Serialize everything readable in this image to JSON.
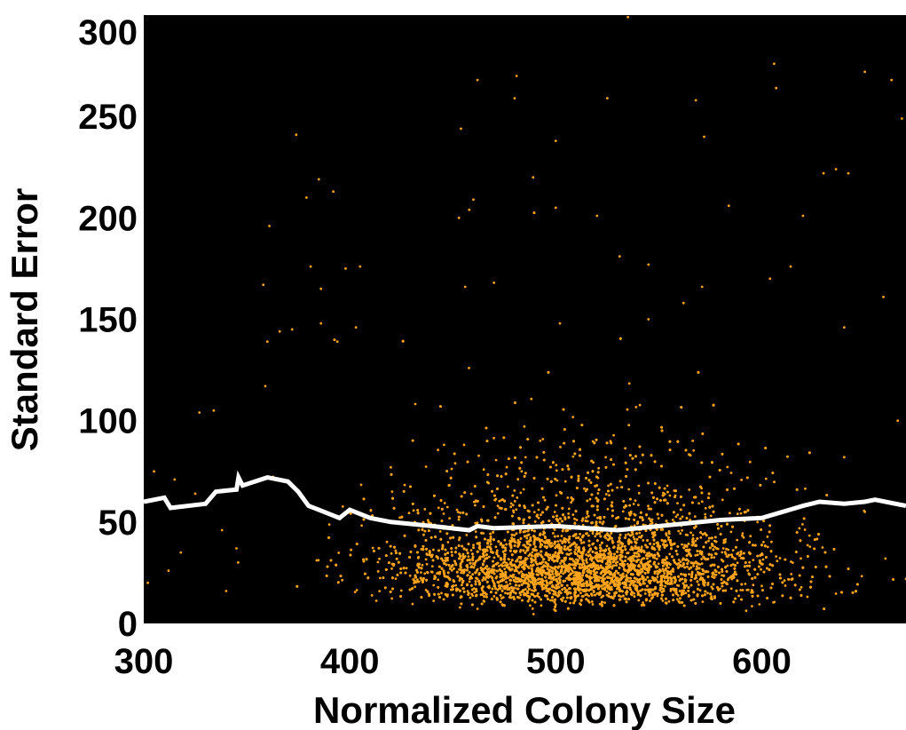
{
  "colors": {
    "plot_background": "#000000",
    "points": "#ffa31a",
    "trend_line": "#ffffff",
    "page_background": "#ffffff"
  },
  "chart_data": {
    "type": "scatter",
    "title": "",
    "xlabel": "Normalized Colony Size",
    "ylabel": "Standard Error",
    "xlim": [
      300,
      670
    ],
    "ylim": [
      0,
      300
    ],
    "xticks": [
      300,
      400,
      500,
      600
    ],
    "yticks": [
      0,
      50,
      100,
      150,
      200,
      250,
      300
    ],
    "grid": false,
    "legend": "none",
    "scatter_summary": {
      "approx_point_count": 10000,
      "x_center": 515,
      "x_spread": 45,
      "y_mode": 28,
      "y_max_visible": 300
    },
    "sparse_points": [
      [
        535,
        299
      ],
      [
        462,
        268
      ],
      [
        481,
        270
      ],
      [
        650,
        272
      ],
      [
        663,
        268
      ],
      [
        606,
        276
      ],
      [
        607,
        264
      ],
      [
        480,
        259
      ],
      [
        525,
        259
      ],
      [
        568,
        258
      ],
      [
        668,
        249
      ],
      [
        374,
        241
      ],
      [
        454,
        244
      ],
      [
        500,
        238
      ],
      [
        572,
        240
      ],
      [
        460,
        209
      ],
      [
        489,
        220
      ],
      [
        385,
        219
      ],
      [
        392,
        213
      ],
      [
        379,
        210
      ],
      [
        630,
        222
      ],
      [
        636,
        224
      ],
      [
        642,
        222
      ],
      [
        500,
        205
      ],
      [
        458,
        204
      ],
      [
        453,
        200
      ],
      [
        520,
        201
      ],
      [
        584,
        206
      ],
      [
        620,
        201
      ],
      [
        361,
        196
      ],
      [
        405,
        176
      ],
      [
        381,
        176
      ],
      [
        398,
        175
      ],
      [
        531,
        181
      ],
      [
        545,
        177
      ],
      [
        614,
        176
      ],
      [
        604,
        170
      ],
      [
        571,
        166
      ],
      [
        358,
        167
      ],
      [
        470,
        168
      ],
      [
        456,
        166
      ],
      [
        386,
        165
      ],
      [
        562,
        158
      ],
      [
        659,
        161
      ],
      [
        640,
        146
      ],
      [
        366,
        144
      ],
      [
        372,
        145
      ],
      [
        386,
        148
      ],
      [
        403,
        146
      ],
      [
        360,
        139
      ],
      [
        394,
        139
      ],
      [
        502,
        148
      ],
      [
        545,
        150
      ],
      [
        359,
        117
      ],
      [
        327,
        104
      ],
      [
        334,
        105
      ],
      [
        305,
        75
      ],
      [
        315,
        71
      ],
      [
        325,
        64
      ],
      [
        302,
        20
      ],
      [
        312,
        26
      ],
      [
        318,
        35
      ],
      [
        338,
        46
      ],
      [
        345,
        37
      ],
      [
        340,
        16
      ],
      [
        670,
        22
      ],
      [
        660,
        32
      ],
      [
        650,
        55
      ],
      [
        640,
        82
      ],
      [
        666,
        100
      ]
    ],
    "trend_line": {
      "name": "",
      "x": [
        300,
        310,
        313,
        330,
        335,
        345,
        346,
        348,
        360,
        370,
        375,
        380,
        385,
        395,
        400,
        410,
        420,
        440,
        458,
        462,
        470,
        500,
        530,
        540,
        560,
        580,
        600,
        620,
        628,
        640,
        650,
        655,
        670
      ],
      "y": [
        60,
        62,
        57,
        59,
        65,
        66,
        72,
        68,
        72,
        70,
        65,
        58,
        56,
        52,
        56,
        52,
        50,
        48,
        46,
        48,
        47,
        48,
        46,
        47,
        49,
        51,
        52,
        58,
        60,
        59,
        60,
        61,
        58
      ]
    }
  }
}
